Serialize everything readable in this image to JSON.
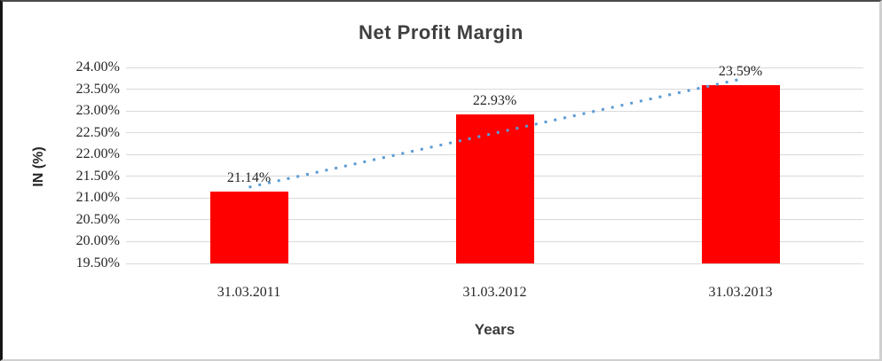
{
  "chart_data": {
    "type": "bar",
    "title": "Net Profit Margin",
    "xlabel": "Years",
    "ylabel": "IN (%)",
    "categories": [
      "31.03.2011",
      "31.03.2012",
      "31.03.2013"
    ],
    "values": [
      21.14,
      22.93,
      23.59
    ],
    "data_labels": [
      "21.14%",
      "22.93%",
      "23.59%"
    ],
    "ylim": [
      19.5,
      24.0
    ],
    "ytick_step": 0.5,
    "yticks": [
      "24.00%",
      "23.50%",
      "23.00%",
      "22.50%",
      "22.00%",
      "21.50%",
      "21.00%",
      "20.50%",
      "20.00%",
      "19.50%"
    ],
    "grid": "horizontal",
    "legend": "none",
    "trendline": {
      "type": "linear",
      "style": "dotted",
      "start_value": 21.25,
      "end_value": 23.73
    },
    "colors": {
      "bar": "#FF0000",
      "trendline": "#5B9BD5",
      "gridline": "#D9D9D9",
      "title_text": "#3F3F3F",
      "axis_text": "#262626"
    }
  }
}
